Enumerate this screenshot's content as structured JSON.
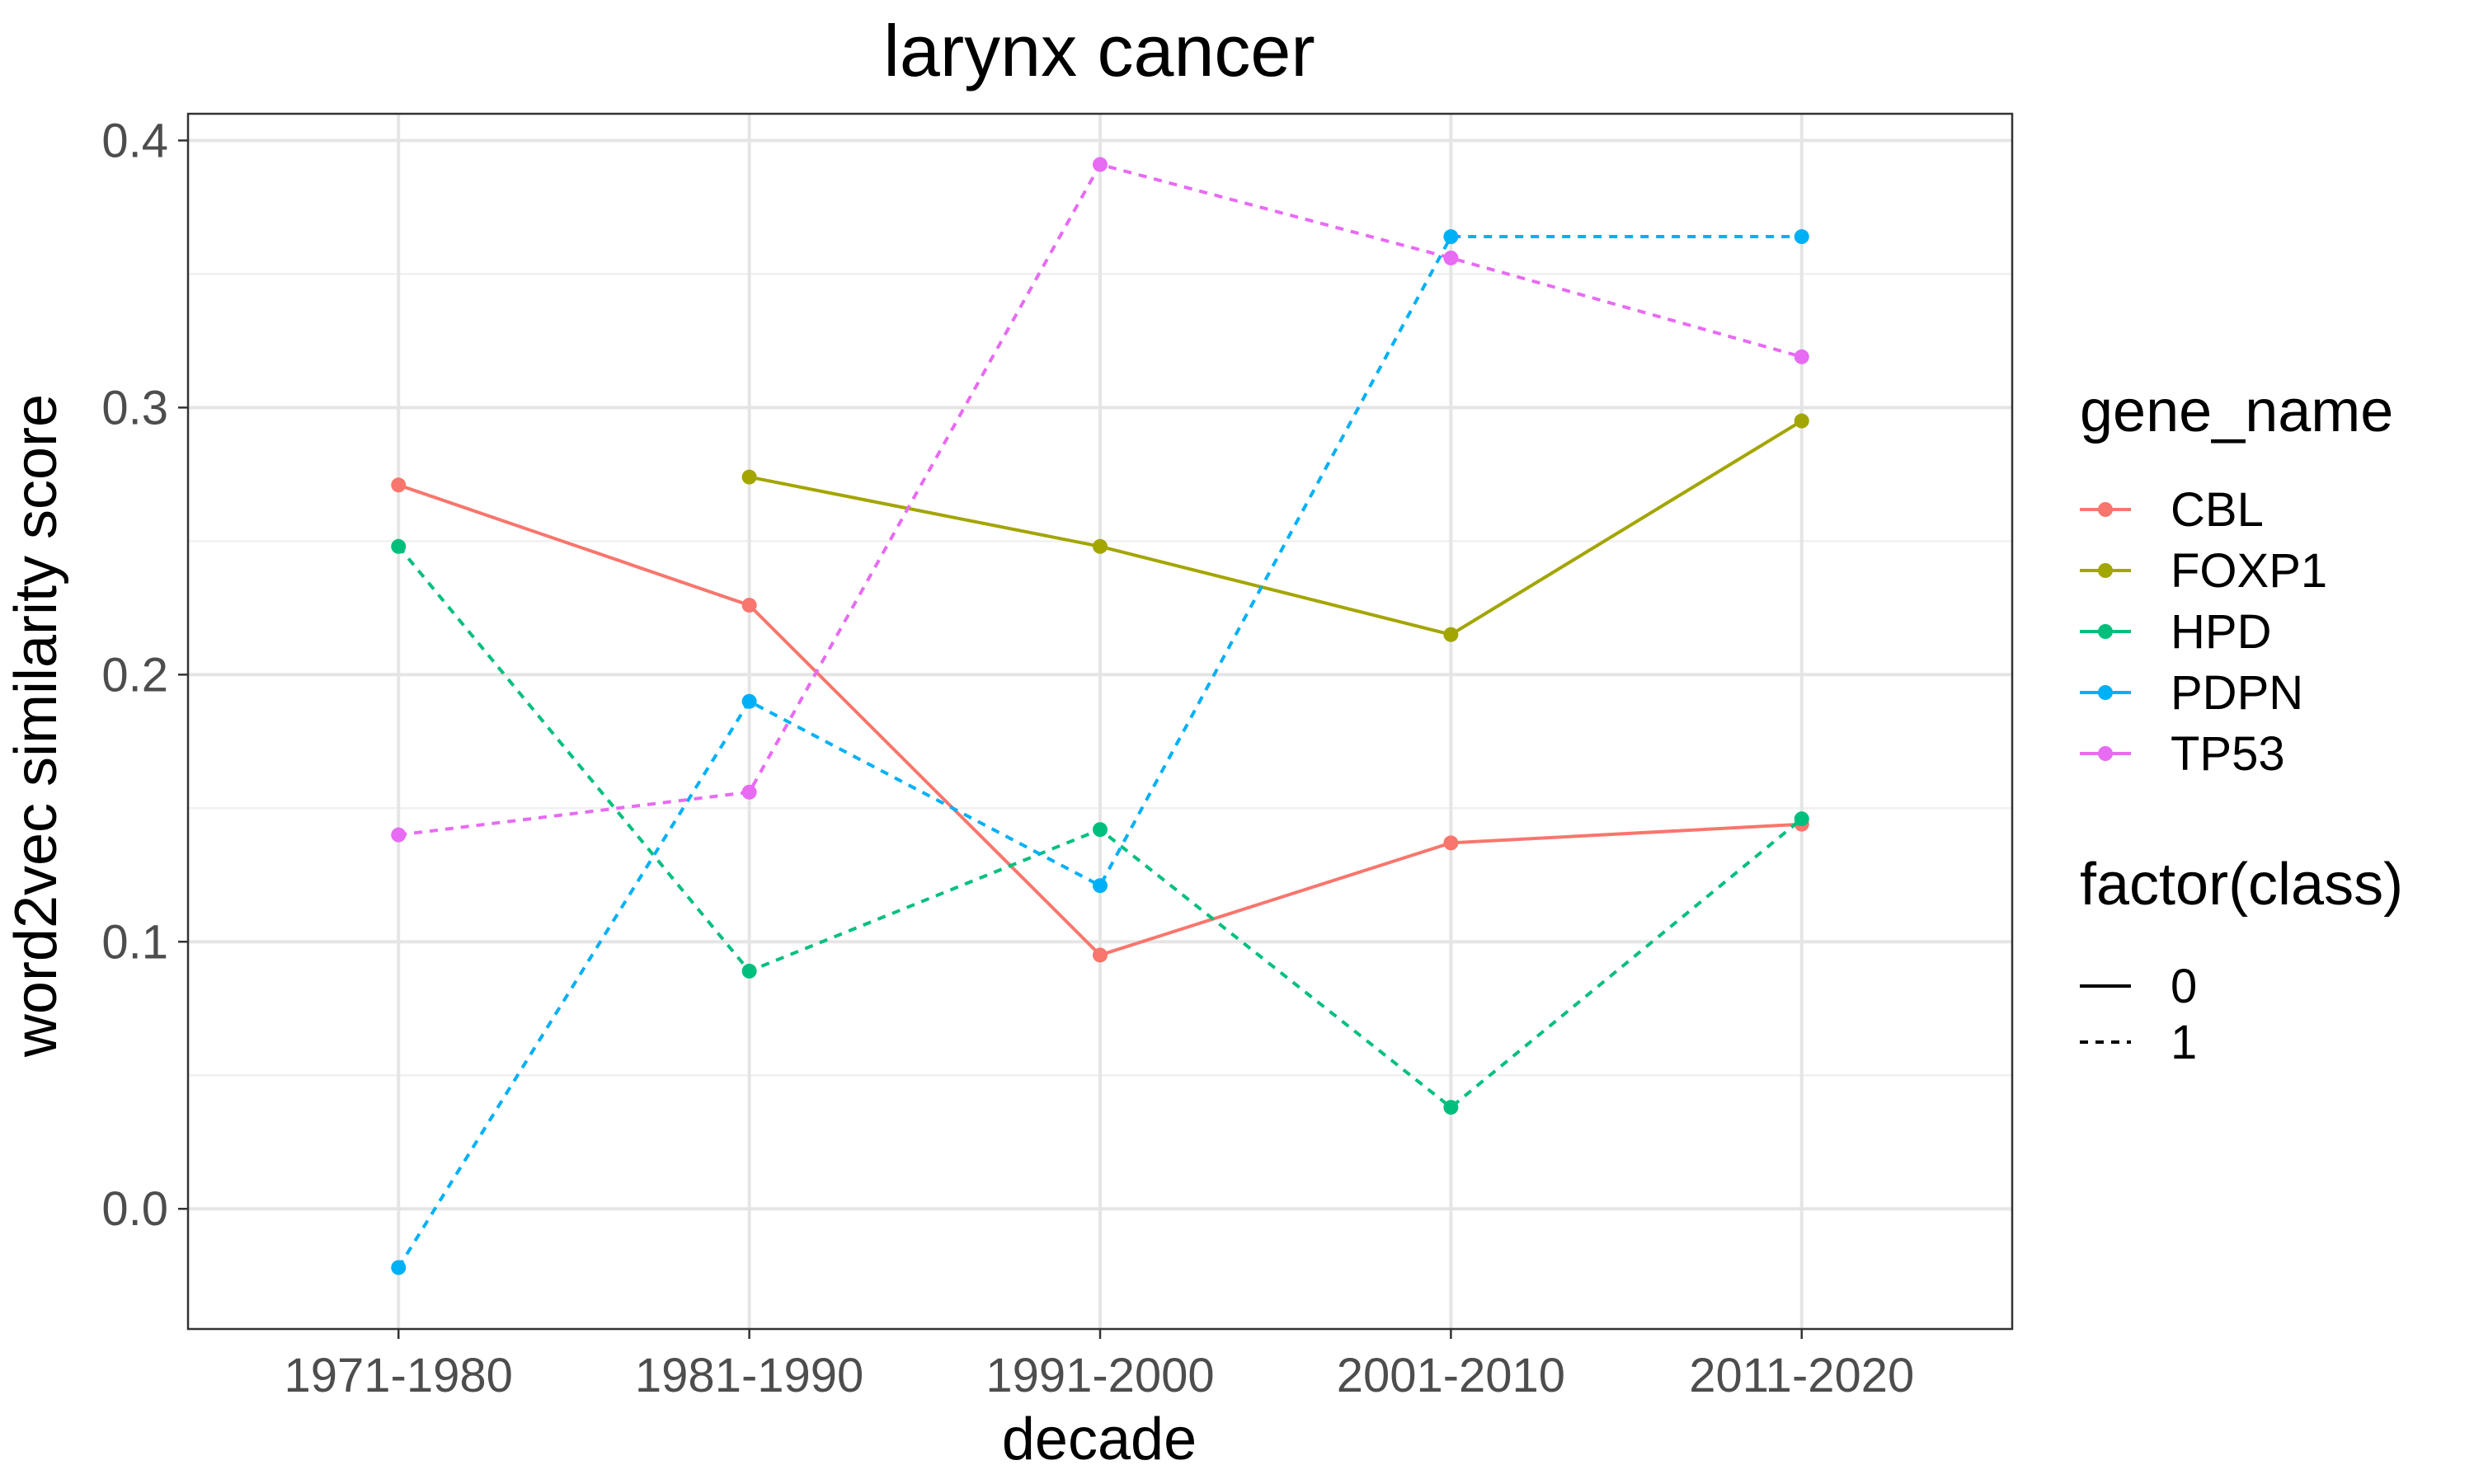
{
  "chart_data": {
    "type": "line",
    "title": "larynx cancer",
    "xlabel": "decade",
    "ylabel": "word2vec similarity score",
    "categories": [
      "1971-1980",
      "1981-1990",
      "1991-2000",
      "2001-2010",
      "2011-2020"
    ],
    "ylim": [
      -0.045,
      0.41
    ],
    "yticks": [
      "0.0",
      "0.1",
      "0.2",
      "0.3",
      "0.4"
    ],
    "ytick_values": [
      0.0,
      0.1,
      0.2,
      0.3,
      0.4
    ],
    "grid": true,
    "legend_placement": "right",
    "legends": {
      "color": {
        "title": "gene_name",
        "entries": [
          "CBL",
          "FOXP1",
          "HPD",
          "PDPN",
          "TP53"
        ]
      },
      "linetype": {
        "title": "factor(class)",
        "entries": [
          {
            "label": "0",
            "linetype": "solid"
          },
          {
            "label": "1",
            "linetype": "dashed"
          }
        ]
      }
    },
    "series": [
      {
        "name": "CBL",
        "class": "0",
        "color": "#F8766D",
        "values": [
          0.271,
          0.226,
          0.095,
          0.137,
          0.144
        ]
      },
      {
        "name": "FOXP1",
        "class": "0",
        "color": "#A3A500",
        "values": [
          null,
          0.274,
          0.248,
          0.215,
          0.295
        ]
      },
      {
        "name": "HPD",
        "class": "1",
        "color": "#00BF7D",
        "values": [
          0.248,
          0.089,
          0.142,
          0.038,
          0.146
        ]
      },
      {
        "name": "PDPN",
        "class": "1",
        "color": "#00B0F6",
        "values": [
          -0.022,
          0.19,
          0.121,
          0.364,
          0.364
        ]
      },
      {
        "name": "TP53",
        "class": "1",
        "color": "#E76BF3",
        "values": [
          0.14,
          0.156,
          0.391,
          0.356,
          0.319
        ]
      }
    ]
  }
}
